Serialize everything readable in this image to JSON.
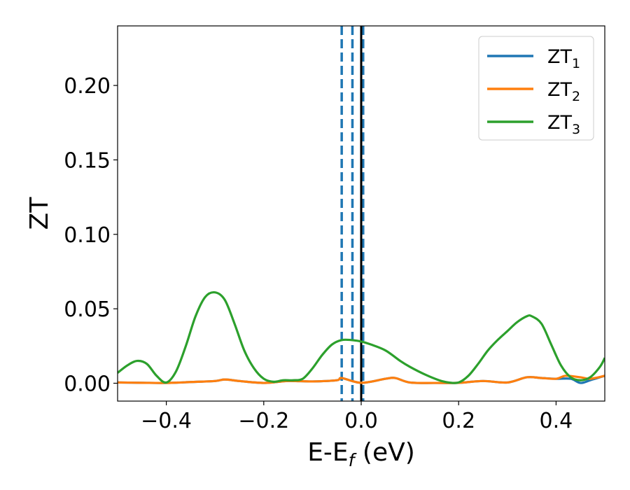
{
  "chart_data": {
    "type": "line",
    "xlabel": "E-E",
    "xlabel_sub": "f",
    "xlabel_unit": " (eV)",
    "ylabel": "ZT",
    "xlim": [
      -0.5,
      0.5
    ],
    "ylim": [
      -0.012,
      0.24
    ],
    "x_ticks": [
      -0.4,
      -0.2,
      0.0,
      0.2,
      0.4
    ],
    "x_tick_labels": [
      "−0.4",
      "−0.2",
      "0.0",
      "0.2",
      "0.4"
    ],
    "y_ticks": [
      0.0,
      0.05,
      0.1,
      0.15,
      0.2
    ],
    "y_tick_labels": [
      "0.00",
      "0.05",
      "0.10",
      "0.15",
      "0.20"
    ],
    "grid": false,
    "legend_position": "top-right",
    "vertical_lines": [
      {
        "x": -0.04,
        "style": "dashed",
        "color": "#1f77b4"
      },
      {
        "x": -0.018,
        "style": "dashed",
        "color": "#1f77b4"
      },
      {
        "x": 0.004,
        "style": "dashed",
        "color": "#1f77b4"
      },
      {
        "x": 0.0,
        "style": "solid",
        "color": "#000000"
      }
    ],
    "series": [
      {
        "name": "ZT",
        "name_sub": "1",
        "color": "#1f77b4",
        "x": [
          -0.5,
          -0.45,
          -0.4,
          -0.35,
          -0.3,
          -0.28,
          -0.25,
          -0.2,
          -0.15,
          -0.1,
          -0.05,
          -0.04,
          0.0,
          0.05,
          0.07,
          0.1,
          0.15,
          0.2,
          0.25,
          0.3,
          0.34,
          0.37,
          0.4,
          0.43,
          0.45,
          0.47,
          0.5
        ],
        "y": [
          0.0005,
          0.0003,
          0.0002,
          0.0008,
          0.0015,
          0.0025,
          0.0015,
          0.0002,
          0.0015,
          0.0012,
          0.002,
          0.0035,
          0.0003,
          0.003,
          0.0035,
          0.0005,
          0.0002,
          0.0003,
          0.0015,
          0.0005,
          0.004,
          0.0035,
          0.003,
          0.003,
          0.0002,
          0.002,
          0.005
        ]
      },
      {
        "name": "ZT",
        "name_sub": "2",
        "color": "#ff7f0e",
        "x": [
          -0.5,
          -0.45,
          -0.4,
          -0.35,
          -0.3,
          -0.28,
          -0.25,
          -0.2,
          -0.15,
          -0.1,
          -0.05,
          -0.04,
          0.0,
          0.05,
          0.07,
          0.1,
          0.15,
          0.2,
          0.25,
          0.3,
          0.34,
          0.37,
          0.4,
          0.42,
          0.45,
          0.47,
          0.5
        ],
        "y": [
          0.0005,
          0.0003,
          0.0002,
          0.0008,
          0.0015,
          0.0025,
          0.0015,
          0.0002,
          0.0015,
          0.0012,
          0.002,
          0.0035,
          0.0003,
          0.003,
          0.0035,
          0.0005,
          0.0002,
          0.0003,
          0.0015,
          0.0005,
          0.004,
          0.0035,
          0.003,
          0.005,
          0.004,
          0.003,
          0.005
        ]
      },
      {
        "name": "ZT",
        "name_sub": "3",
        "color": "#2ca02c",
        "x": [
          -0.5,
          -0.48,
          -0.46,
          -0.44,
          -0.42,
          -0.4,
          -0.38,
          -0.36,
          -0.34,
          -0.32,
          -0.3,
          -0.28,
          -0.26,
          -0.24,
          -0.22,
          -0.2,
          -0.18,
          -0.16,
          -0.14,
          -0.12,
          -0.1,
          -0.08,
          -0.06,
          -0.04,
          -0.02,
          0.0,
          0.02,
          0.05,
          0.08,
          0.1,
          0.13,
          0.16,
          0.18,
          0.2,
          0.22,
          0.24,
          0.26,
          0.28,
          0.3,
          0.32,
          0.34,
          0.35,
          0.37,
          0.39,
          0.41,
          0.43,
          0.45,
          0.47,
          0.49,
          0.5
        ],
        "y": [
          0.007,
          0.012,
          0.015,
          0.013,
          0.005,
          0.0005,
          0.008,
          0.025,
          0.045,
          0.058,
          0.061,
          0.056,
          0.04,
          0.022,
          0.01,
          0.003,
          0.001,
          0.002,
          0.002,
          0.003,
          0.01,
          0.019,
          0.026,
          0.029,
          0.029,
          0.028,
          0.026,
          0.022,
          0.015,
          0.011,
          0.006,
          0.002,
          0.0005,
          0.0005,
          0.005,
          0.013,
          0.022,
          0.029,
          0.035,
          0.041,
          0.045,
          0.045,
          0.04,
          0.026,
          0.012,
          0.004,
          0.002,
          0.004,
          0.011,
          0.017
        ]
      }
    ]
  }
}
